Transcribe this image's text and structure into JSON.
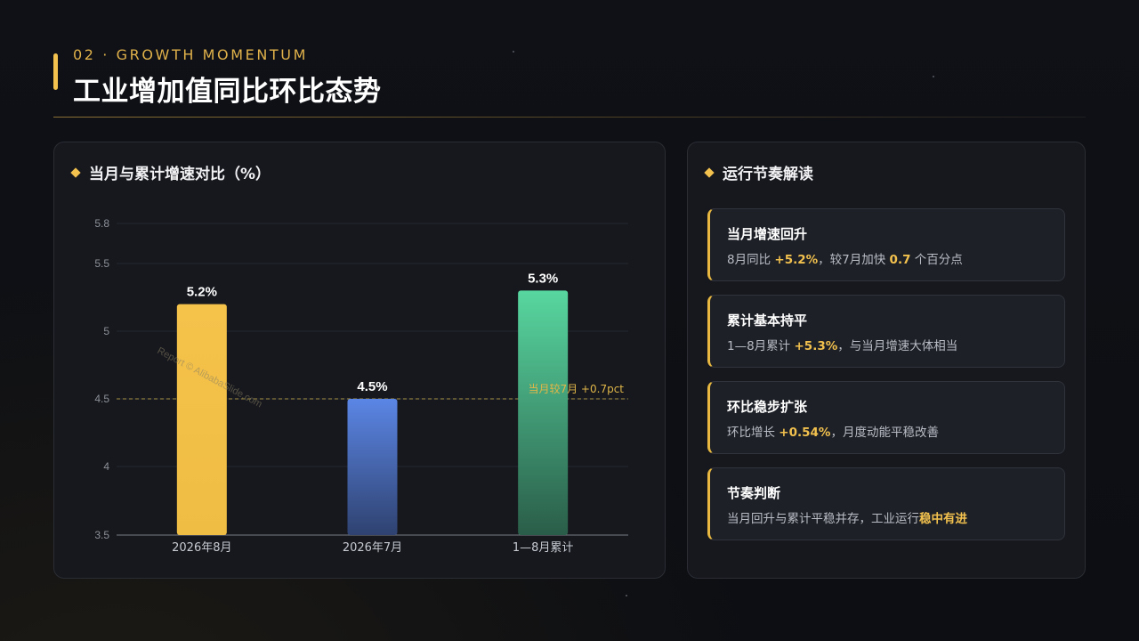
{
  "header": {
    "eyebrow": "02 · GROWTH MOMENTUM",
    "title": "工业增加值同比环比态势"
  },
  "chart_panel": {
    "title": "当月与累计增速对比（%）",
    "watermark": "Report © AlibabaSlide.com"
  },
  "chart_data": {
    "type": "bar",
    "title": "当月与累计增速对比（%）",
    "categories": [
      "2026年8月",
      "2026年7月",
      "1—8月累计"
    ],
    "values": [
      5.2,
      4.5,
      5.3
    ],
    "value_labels": [
      "5.2%",
      "4.5%",
      "5.3%"
    ],
    "bar_colors": [
      "#f5c24a",
      "#5b86e5",
      "#4fd39c"
    ],
    "y_ticks": [
      3.5,
      4,
      4.5,
      5,
      5.5,
      5.8
    ],
    "y_tick_labels": [
      "3.5",
      "4",
      "4.5",
      "5",
      "5.5",
      "5.8"
    ],
    "ylim": [
      3.5,
      5.8
    ],
    "grid": true,
    "reference_line": {
      "value": 4.5,
      "label": "当月较7月 +0.7pct",
      "color": "#c9b04a"
    }
  },
  "insights_panel": {
    "title": "运行节奏解读",
    "cards": [
      {
        "title": "当月增速回升",
        "parts": [
          {
            "text": "8月同比 ",
            "hl": false
          },
          {
            "text": "+5.2%",
            "hl": true
          },
          {
            "text": "，较7月加快 ",
            "hl": false
          },
          {
            "text": "0.7",
            "hl": true
          },
          {
            "text": " 个百分点",
            "hl": false
          }
        ]
      },
      {
        "title": "累计基本持平",
        "parts": [
          {
            "text": "1—8月累计 ",
            "hl": false
          },
          {
            "text": "+5.3%",
            "hl": true
          },
          {
            "text": "，与当月增速大体相当",
            "hl": false
          }
        ]
      },
      {
        "title": "环比稳步扩张",
        "parts": [
          {
            "text": "环比增长 ",
            "hl": false
          },
          {
            "text": "+0.54%",
            "hl": true
          },
          {
            "text": "，月度动能平稳改善",
            "hl": false
          }
        ]
      },
      {
        "title": "节奏判断",
        "parts": [
          {
            "text": "当月回升与累计平稳并存，工业运行",
            "hl": false
          },
          {
            "text": "稳中有进",
            "hl": true
          }
        ]
      }
    ]
  },
  "colors": {
    "accent": "#f2c14e",
    "background": "#0d0f14",
    "panel": "#16181e"
  }
}
